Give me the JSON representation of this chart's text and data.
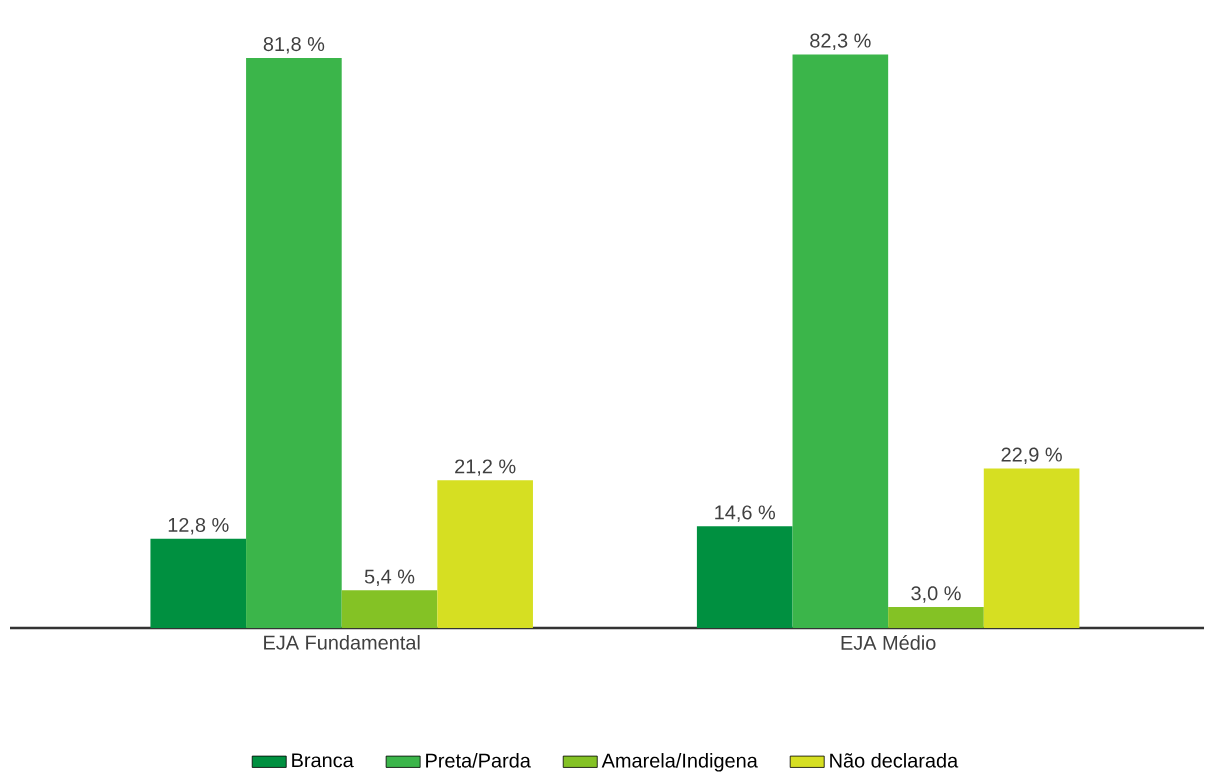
{
  "chart_data": {
    "type": "bar",
    "categories": [
      "EJA Fundamental",
      "EJA Médio"
    ],
    "series": [
      {
        "name": "Branca",
        "color": "#009040",
        "values": [
          12.8,
          14.6
        ],
        "value_labels": [
          "12,8 %",
          "14,6 %"
        ]
      },
      {
        "name": "Preta/Parda",
        "color": "#3bb54a",
        "values": [
          81.8,
          82.3
        ],
        "value_labels": [
          "81,8 %",
          "82,3 %"
        ]
      },
      {
        "name": "Amarela/Indigena",
        "color": "#84c225",
        "values": [
          5.4,
          3.0
        ],
        "value_labels": [
          "5,4 %",
          "3,0 %"
        ]
      },
      {
        "name": "Não declarada",
        "color": "#d6df22",
        "values": [
          21.2,
          22.9
        ],
        "value_labels": [
          "21,2 %",
          "22,9 %"
        ]
      }
    ],
    "legend": "bottom"
  }
}
